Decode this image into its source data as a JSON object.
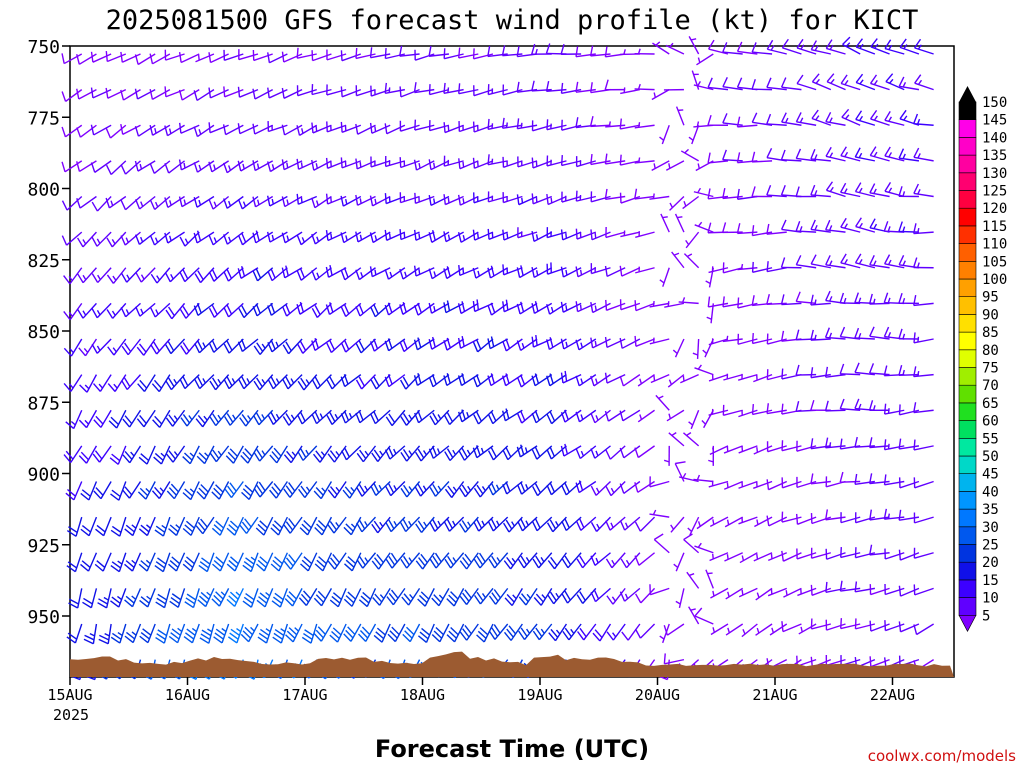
{
  "chart_data": {
    "type": "wind-barb",
    "title": "2025081500 GFS forecast wind profile (kt) for KICT",
    "xlabel": "Forecast Time (UTC)",
    "credit": "coolwx.com/models",
    "yticks": [
      "750",
      "775",
      "800",
      "825",
      "850",
      "875",
      "900",
      "925",
      "950"
    ],
    "ylim": [
      750,
      975
    ],
    "xticks": [
      "15AUG",
      "16AUG",
      "17AUG",
      "18AUG",
      "19AUG",
      "20AUG",
      "21AUG",
      "22AUG"
    ],
    "x_year": "2025",
    "colorbar": {
      "labels": [
        "5",
        "10",
        "15",
        "20",
        "25",
        "30",
        "35",
        "40",
        "45",
        "50",
        "55",
        "60",
        "65",
        "70",
        "75",
        "80",
        "85",
        "90",
        "95",
        "100",
        "105",
        "110",
        "115",
        "120",
        "125",
        "130",
        "135",
        "140",
        "145",
        "150"
      ],
      "colors": [
        "#7f00ff",
        "#6000ff",
        "#3c00ff",
        "#1010e8",
        "#0034e0",
        "#0058ee",
        "#0078ff",
        "#0096ff",
        "#00b4ee",
        "#00d8c8",
        "#00e8a0",
        "#00e060",
        "#20e020",
        "#60e000",
        "#a0ee00",
        "#e0ff00",
        "#ffff00",
        "#ffe000",
        "#ffc000",
        "#ffa000",
        "#ff8000",
        "#ff6000",
        "#ff3000",
        "#ff0000",
        "#ff0040",
        "#ff0070",
        "#ff00a0",
        "#ff00c8",
        "#ff00e8",
        "#000000"
      ]
    },
    "terrain_color": "#9c5b31",
    "speed_regimes_kt": [
      {
        "time": "15AUG-16AUG",
        "levels": "750-800",
        "speed_kt": 10
      },
      {
        "time": "16AUG-17AUG",
        "levels": "850-950",
        "speed_kt": 35
      },
      {
        "time": "17AUG-19AUG",
        "levels": "850-950",
        "speed_kt": 25
      },
      {
        "time": "20AUG",
        "levels": "750-950",
        "speed_kt": 5
      },
      {
        "time": "21AUG-22AUG",
        "levels": "750-825",
        "speed_kt": 15
      },
      {
        "time": "21AUG-22AUG",
        "levels": "850-950",
        "speed_kt": 10
      }
    ]
  }
}
